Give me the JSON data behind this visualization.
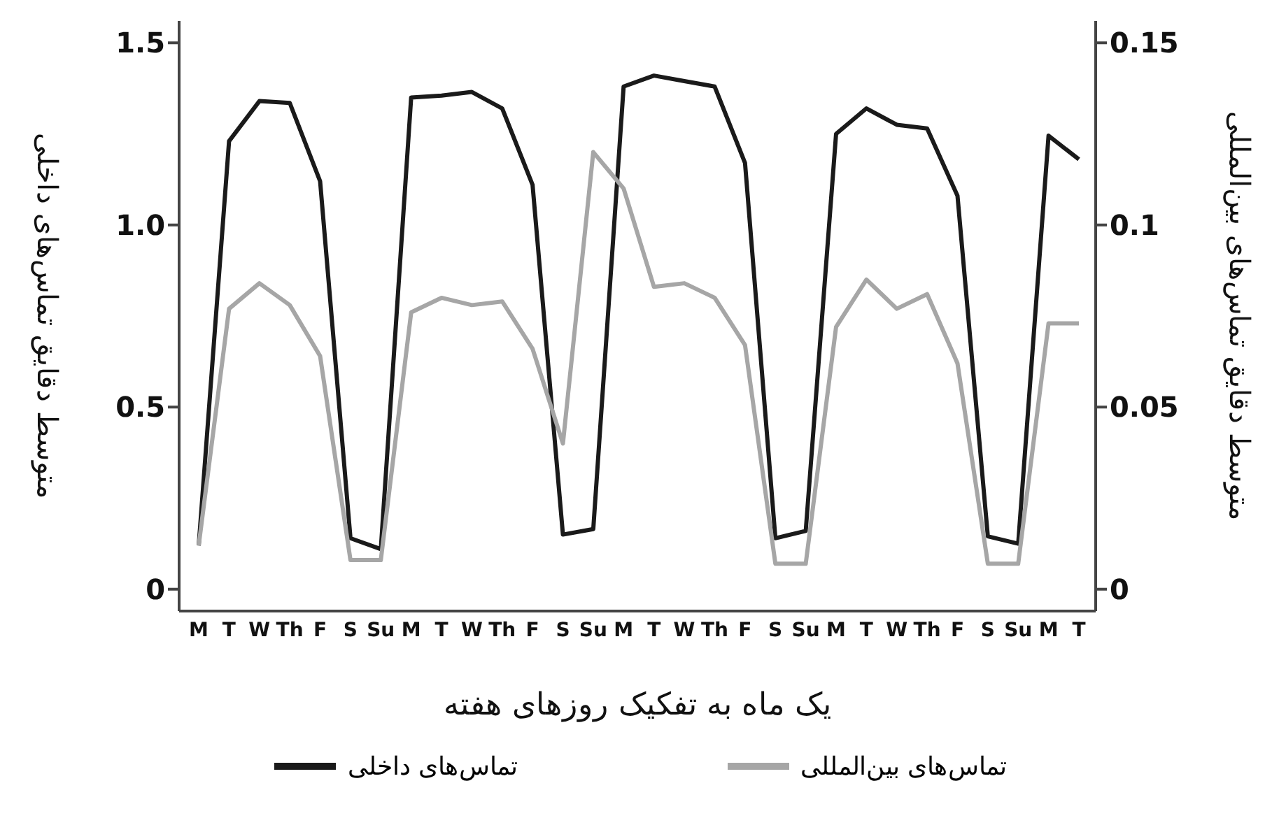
{
  "chart_data": {
    "type": "line",
    "xlabel": "یک ماه به تفکیک روزهای هفته",
    "ylabel": "متوسط دقایق تماس‌های داخلی",
    "y2label": "متوسط دقایق تماس‌های بین‌المللی",
    "categories": [
      "M",
      "T",
      "W",
      "Th",
      "F",
      "S",
      "Su",
      "M",
      "T",
      "W",
      "Th",
      "F",
      "S",
      "Su",
      "M",
      "T",
      "W",
      "Th",
      "F",
      "S",
      "Su",
      "M",
      "T",
      "W",
      "Th",
      "F",
      "S",
      "Su",
      "M",
      "T"
    ],
    "series": [
      {
        "name": "تماس‌های داخلی",
        "color": "#1a1a1a",
        "values": [
          0.12,
          1.23,
          1.34,
          1.335,
          1.12,
          0.14,
          0.11,
          1.35,
          1.355,
          1.365,
          1.32,
          1.11,
          0.15,
          0.165,
          1.38,
          1.41,
          1.395,
          1.38,
          1.17,
          0.14,
          0.16,
          1.25,
          1.32,
          1.275,
          1.265,
          1.08,
          0.145,
          0.125,
          1.245,
          1.18
        ]
      },
      {
        "name": "تماس‌های بین‌المللی",
        "color": "#a6a6a6",
        "axis": "y2",
        "values": [
          0.012,
          0.077,
          0.084,
          0.078,
          0.064,
          0.008,
          0.008,
          0.076,
          0.08,
          0.078,
          0.079,
          0.066,
          0.04,
          0.12,
          0.11,
          0.083,
          0.084,
          0.08,
          0.067,
          0.007,
          0.007,
          0.072,
          0.085,
          0.077,
          0.081,
          0.062,
          0.007,
          0.007,
          0.073,
          0.073
        ]
      }
    ],
    "ylim": [
      -0.06,
      1.56
    ],
    "yticks": [
      0,
      0.5,
      {
        "value": 1,
        "label": "1.0"
      },
      1.5
    ],
    "y2lim": [
      -0.006,
      0.156
    ],
    "y2ticks": [
      0,
      0.05,
      0.1,
      0.15
    ],
    "grid": false,
    "legend": "bottom",
    "marker": "none",
    "line_style": "solid"
  }
}
